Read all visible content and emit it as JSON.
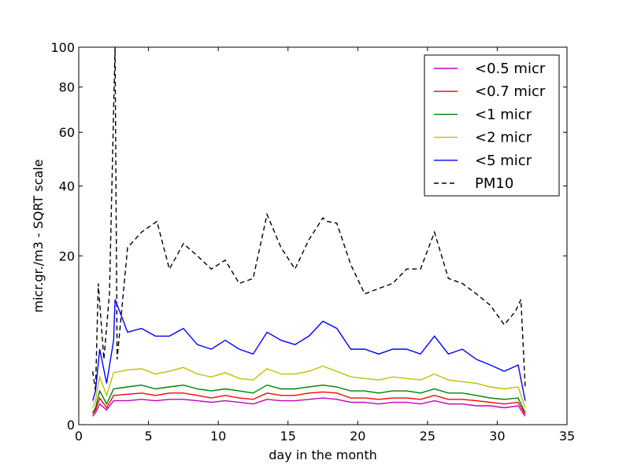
{
  "chart_data": {
    "type": "line",
    "title": "",
    "xlabel": "day in the month",
    "ylabel": "micr.gr./m3 - SQRT scale",
    "xlim": [
      0,
      35
    ],
    "ylim": [
      0,
      100
    ],
    "y_scale": "sqrt",
    "xticks": [
      0,
      5,
      10,
      15,
      20,
      25,
      30,
      35
    ],
    "yticks": [
      0,
      20,
      40,
      60,
      80,
      100
    ],
    "xtick_labels": [
      "0",
      "5",
      "10",
      "15",
      "20",
      "25",
      "30",
      "35"
    ],
    "ytick_labels": [
      "0",
      "20",
      "40",
      "60",
      "80",
      "100"
    ],
    "grid": false,
    "legend_position": "top-right",
    "series": [
      {
        "name": "<0.5 micr",
        "color": "#bf00bf",
        "dash": "solid",
        "x": [
          1.0,
          1.2,
          1.5,
          2.0,
          2.5,
          3.5,
          4.5,
          5.5,
          6.5,
          7.5,
          8.5,
          9.5,
          10.5,
          11.5,
          12.5,
          13.5,
          14.5,
          15.5,
          16.5,
          17.5,
          18.5,
          19.5,
          20.5,
          21.5,
          22.5,
          23.5,
          24.5,
          25.5,
          26.5,
          27.5,
          28.5,
          29.5,
          30.5,
          31.5,
          32.0
        ],
        "values": [
          0.05,
          0.1,
          0.3,
          0.15,
          0.4,
          0.4,
          0.45,
          0.4,
          0.45,
          0.45,
          0.4,
          0.35,
          0.4,
          0.35,
          0.3,
          0.45,
          0.4,
          0.4,
          0.45,
          0.5,
          0.45,
          0.35,
          0.35,
          0.3,
          0.35,
          0.35,
          0.3,
          0.4,
          0.3,
          0.3,
          0.25,
          0.25,
          0.2,
          0.25,
          0.05
        ]
      },
      {
        "name": "<0.7 micr",
        "color": "#ff0000",
        "dash": "solid",
        "x": [
          1.0,
          1.2,
          1.5,
          2.0,
          2.5,
          3.5,
          4.5,
          5.5,
          6.5,
          7.5,
          8.5,
          9.5,
          10.5,
          11.5,
          12.5,
          13.5,
          14.5,
          15.5,
          16.5,
          17.5,
          18.5,
          19.5,
          20.5,
          21.5,
          22.5,
          23.5,
          24.5,
          25.5,
          26.5,
          27.5,
          28.5,
          29.5,
          30.5,
          31.5,
          32.0
        ],
        "values": [
          0.08,
          0.15,
          0.5,
          0.2,
          0.6,
          0.65,
          0.7,
          0.6,
          0.7,
          0.7,
          0.6,
          0.5,
          0.6,
          0.5,
          0.45,
          0.7,
          0.6,
          0.6,
          0.7,
          0.75,
          0.7,
          0.5,
          0.5,
          0.45,
          0.5,
          0.5,
          0.45,
          0.6,
          0.45,
          0.45,
          0.4,
          0.35,
          0.3,
          0.35,
          0.08
        ]
      },
      {
        "name": "<1 micr",
        "color": "#008000",
        "dash": "solid",
        "x": [
          1.0,
          1.2,
          1.5,
          2.0,
          2.5,
          3.5,
          4.5,
          5.5,
          6.5,
          7.5,
          8.5,
          9.5,
          10.5,
          11.5,
          12.5,
          13.5,
          14.5,
          15.5,
          16.5,
          17.5,
          18.5,
          19.5,
          20.5,
          21.5,
          22.5,
          23.5,
          24.5,
          25.5,
          26.5,
          27.5,
          28.5,
          29.5,
          30.5,
          31.5,
          32.0
        ],
        "values": [
          0.1,
          0.2,
          0.8,
          0.3,
          0.9,
          1.0,
          1.1,
          0.9,
          1.0,
          1.1,
          0.9,
          0.8,
          0.9,
          0.8,
          0.7,
          1.1,
          0.9,
          0.9,
          1.0,
          1.1,
          1.0,
          0.8,
          0.8,
          0.7,
          0.8,
          0.8,
          0.7,
          0.9,
          0.7,
          0.7,
          0.6,
          0.5,
          0.45,
          0.5,
          0.1
        ]
      },
      {
        "name": "<2 micr",
        "color": "#bfbf00",
        "dash": "solid",
        "x": [
          1.0,
          1.2,
          1.5,
          2.0,
          2.5,
          3.5,
          4.5,
          5.5,
          6.5,
          7.5,
          8.5,
          9.5,
          10.5,
          11.5,
          12.5,
          13.5,
          14.5,
          15.5,
          16.5,
          17.5,
          18.5,
          19.5,
          20.5,
          21.5,
          22.5,
          23.5,
          24.5,
          25.5,
          26.5,
          27.5,
          28.5,
          29.5,
          30.5,
          31.5,
          32.0
        ],
        "values": [
          0.2,
          0.4,
          1.6,
          0.6,
          1.9,
          2.1,
          2.2,
          1.8,
          2.0,
          2.3,
          1.8,
          1.6,
          1.9,
          1.5,
          1.4,
          2.2,
          1.8,
          1.8,
          2.0,
          2.4,
          2.0,
          1.6,
          1.5,
          1.4,
          1.6,
          1.5,
          1.4,
          1.8,
          1.4,
          1.3,
          1.2,
          1.0,
          0.9,
          1.0,
          0.2
        ]
      },
      {
        "name": "<5 micr",
        "color": "#0000ff",
        "dash": "solid",
        "x": [
          1.0,
          1.2,
          1.5,
          2.0,
          2.5,
          2.6,
          3.5,
          4.5,
          5.5,
          6.5,
          7.5,
          8.5,
          9.5,
          10.5,
          11.5,
          12.5,
          13.5,
          14.5,
          15.5,
          16.5,
          17.5,
          18.5,
          19.5,
          20.5,
          21.5,
          22.5,
          23.5,
          24.5,
          25.5,
          26.5,
          27.5,
          28.5,
          29.5,
          30.5,
          31.5,
          32.0
        ],
        "values": [
          0.4,
          0.8,
          4.0,
          1.2,
          5.0,
          11.0,
          6.0,
          6.5,
          5.5,
          5.5,
          6.5,
          4.5,
          4.0,
          5.0,
          4.0,
          3.5,
          6.0,
          5.0,
          4.5,
          5.5,
          7.5,
          6.5,
          4.0,
          4.0,
          3.5,
          4.0,
          4.0,
          3.5,
          5.5,
          3.5,
          4.0,
          3.0,
          2.5,
          2.0,
          2.5,
          0.4
        ]
      },
      {
        "name": "PM10",
        "color": "#000000",
        "dash": "dashed",
        "x": [
          1.0,
          1.2,
          1.4,
          1.8,
          2.2,
          2.6,
          2.75,
          3.5,
          4.5,
          5.6,
          6.5,
          7.5,
          8.5,
          9.5,
          10.5,
          11.5,
          12.5,
          13.5,
          14.5,
          15.5,
          16.5,
          17.5,
          17.8,
          18.5,
          19.5,
          20.5,
          21.5,
          22.5,
          23.5,
          24.5,
          25.5,
          26.5,
          27.5,
          28.5,
          29.5,
          30.5,
          31.3,
          31.7,
          32.0
        ],
        "values": [
          2.0,
          0.8,
          14.0,
          3.0,
          12.0,
          100.0,
          3.0,
          22.0,
          26.0,
          29.0,
          17.0,
          23.0,
          20.0,
          17.0,
          19.0,
          14.0,
          15.0,
          31.0,
          22.0,
          17.0,
          24.0,
          30.0,
          29.0,
          28.5,
          18.0,
          12.0,
          13.0,
          14.0,
          17.0,
          17.0,
          26.0,
          15.0,
          14.0,
          12.0,
          10.0,
          7.0,
          9.0,
          11.0,
          1.0
        ]
      }
    ]
  }
}
